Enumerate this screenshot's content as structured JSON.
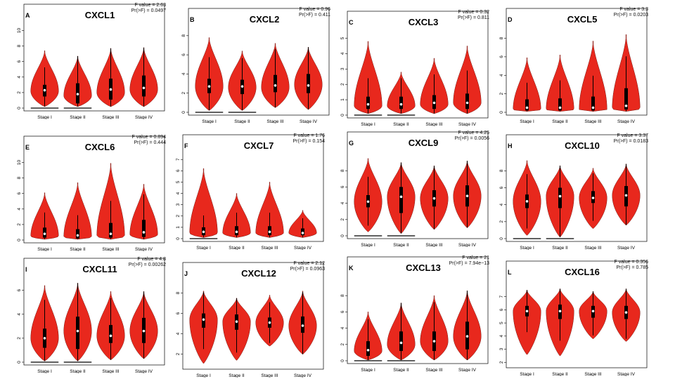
{
  "chart_data": [
    {
      "type": "violin",
      "panel": "A",
      "title": "CXCL1",
      "f_text": "F value = 2.63",
      "p_text": "Pr(>F) = 0.0497",
      "categories": [
        "Stage I",
        "Stage II",
        "Stage III",
        "Stage IV"
      ],
      "yticks": [
        0,
        2,
        4,
        6,
        8,
        10
      ],
      "ylim": [
        0,
        10.5
      ],
      "violins": [
        {
          "min": 0.2,
          "max": 7.4,
          "q1": 1.5,
          "median": 2.3,
          "q3": 3.0,
          "mode": 2.2,
          "zero_line": true
        },
        {
          "min": 0.2,
          "max": 6.7,
          "q1": 0.6,
          "median": 1.8,
          "q3": 3.2,
          "mode": 1.6,
          "zero_line": true
        },
        {
          "min": 0.2,
          "max": 7.7,
          "q1": 1.1,
          "median": 2.4,
          "q3": 3.8,
          "mode": 2.0,
          "zero_line": false
        },
        {
          "min": 0.2,
          "max": 7.8,
          "q1": 1.5,
          "median": 2.6,
          "q3": 4.2,
          "mode": 2.4,
          "zero_line": false
        }
      ]
    },
    {
      "type": "violin",
      "panel": "B",
      "title": "CXCL2",
      "f_text": "F value = 0.96",
      "p_text": "Pr(>F) = 0.411",
      "categories": [
        "Stage I",
        "Stage II",
        "Stage III",
        "Stage IV"
      ],
      "yticks": [
        0,
        2,
        4,
        6,
        8
      ],
      "ylim": [
        0,
        8.5
      ],
      "violins": [
        {
          "min": 0.2,
          "max": 7.8,
          "q1": 2.0,
          "median": 2.7,
          "q3": 3.5,
          "mode": 2.7,
          "zero_line": true
        },
        {
          "min": 0.2,
          "max": 6.4,
          "q1": 1.9,
          "median": 2.7,
          "q3": 3.4,
          "mode": 2.6,
          "zero_line": true
        },
        {
          "min": 0.5,
          "max": 7.2,
          "q1": 2.1,
          "median": 2.8,
          "q3": 3.9,
          "mode": 2.6,
          "zero_line": false
        },
        {
          "min": 0.3,
          "max": 6.8,
          "q1": 2.0,
          "median": 2.8,
          "q3": 4.0,
          "mode": 2.9,
          "zero_line": false
        }
      ]
    },
    {
      "type": "violin",
      "panel": "C",
      "title": "CXCL3",
      "f_text": "F value = 0.32",
      "p_text": "Pr(>F) = 0.811",
      "categories": [
        "Stage I",
        "Stage II",
        "Stage III",
        "Stage IV"
      ],
      "yticks": [
        0,
        1,
        2,
        3,
        4,
        5
      ],
      "ylim": [
        0,
        5.3
      ],
      "violins": [
        {
          "min": 0.1,
          "max": 4.8,
          "q1": 0.4,
          "median": 0.7,
          "q3": 1.2,
          "mode": 0.6,
          "zero_line": true
        },
        {
          "min": 0.1,
          "max": 2.8,
          "q1": 0.4,
          "median": 0.7,
          "q3": 1.2,
          "mode": 0.6,
          "zero_line": true
        },
        {
          "min": 0.1,
          "max": 3.7,
          "q1": 0.4,
          "median": 0.8,
          "q3": 1.3,
          "mode": 0.7,
          "zero_line": false
        },
        {
          "min": 0.1,
          "max": 4.5,
          "q1": 0.4,
          "median": 0.8,
          "q3": 1.4,
          "mode": 0.8,
          "zero_line": false
        }
      ]
    },
    {
      "type": "violin",
      "panel": "D",
      "title": "CXCL5",
      "f_text": "F value = 3.3",
      "p_text": "Pr(>F) = 0.0203",
      "categories": [
        "Stage I",
        "Stage II",
        "Stage III",
        "Stage IV"
      ],
      "yticks": [
        0,
        2,
        4,
        6,
        8
      ],
      "ylim": [
        0,
        8.8
      ],
      "violins": [
        {
          "min": 0.1,
          "max": 5.9,
          "q1": 0.2,
          "median": 0.5,
          "q3": 1.4,
          "mode": 0.3,
          "zero_line": false
        },
        {
          "min": 0.1,
          "max": 6.2,
          "q1": 0.2,
          "median": 0.5,
          "q3": 1.5,
          "mode": 0.3,
          "zero_line": false
        },
        {
          "min": 0.1,
          "max": 7.7,
          "q1": 0.2,
          "median": 0.5,
          "q3": 1.7,
          "mode": 0.3,
          "zero_line": false
        },
        {
          "min": 0.1,
          "max": 8.4,
          "q1": 0.3,
          "median": 0.7,
          "q3": 2.6,
          "mode": 0.4,
          "zero_line": false
        }
      ]
    },
    {
      "type": "violin",
      "panel": "E",
      "title": "CXCL6",
      "f_text": "F value = 0.894",
      "p_text": "Pr(>F) = 0.444",
      "categories": [
        "Stage I",
        "Stage II",
        "Stage III",
        "Stage IV"
      ],
      "yticks": [
        0,
        2,
        4,
        6,
        8,
        10
      ],
      "ylim": [
        0,
        10.5
      ],
      "violins": [
        {
          "min": 0.1,
          "max": 6.1,
          "q1": 0.3,
          "median": 0.8,
          "q3": 1.6,
          "mode": 0.5,
          "zero_line": false
        },
        {
          "min": 0.1,
          "max": 7.4,
          "q1": 0.2,
          "median": 0.6,
          "q3": 1.4,
          "mode": 0.4,
          "zero_line": false
        },
        {
          "min": 0.1,
          "max": 9.9,
          "q1": 0.3,
          "median": 0.8,
          "q3": 2.2,
          "mode": 0.5,
          "zero_line": false
        },
        {
          "min": 0.1,
          "max": 7.2,
          "q1": 0.4,
          "median": 1.0,
          "q3": 2.6,
          "mode": 0.7,
          "zero_line": false
        }
      ]
    },
    {
      "type": "violin",
      "panel": "F",
      "title": "CXCL7",
      "f_text": "F value = 1.76",
      "p_text": "Pr(>F) = 0.154",
      "categories": [
        "Stage I",
        "Stage II",
        "Stage III",
        "Stage IV"
      ],
      "yticks": [
        0,
        1,
        2,
        3,
        4,
        5,
        6,
        7
      ],
      "ylim": [
        0,
        7.2
      ],
      "violins": [
        {
          "min": 0.1,
          "max": 6.2,
          "q1": 0.3,
          "median": 0.6,
          "q3": 1.0,
          "mode": 0.5,
          "zero_line": true
        },
        {
          "min": 0.1,
          "max": 4.0,
          "q1": 0.3,
          "median": 0.6,
          "q3": 1.1,
          "mode": 0.5,
          "zero_line": false
        },
        {
          "min": 0.1,
          "max": 5.0,
          "q1": 0.3,
          "median": 0.6,
          "q3": 1.1,
          "mode": 0.5,
          "zero_line": false
        },
        {
          "min": 0.1,
          "max": 2.5,
          "q1": 0.3,
          "median": 0.5,
          "q3": 0.9,
          "mode": 0.5,
          "zero_line": false
        }
      ]
    },
    {
      "type": "violin",
      "panel": "G",
      "title": "CXCL9",
      "f_text": "F value = 4.25",
      "p_text": "Pr(>F) = 0.0056",
      "categories": [
        "Stage I",
        "Stage II",
        "Stage III",
        "Stage IV"
      ],
      "yticks": [
        0,
        2,
        4,
        6,
        8
      ],
      "ylim": [
        0,
        10
      ],
      "violins": [
        {
          "min": 0.5,
          "max": 9.5,
          "q1": 3.5,
          "median": 4.2,
          "q3": 5.0,
          "mode": 4.2,
          "zero_line": true
        },
        {
          "min": 0.3,
          "max": 9.0,
          "q1": 2.8,
          "median": 4.8,
          "q3": 6.0,
          "mode": 4.8,
          "zero_line": true
        },
        {
          "min": 0.8,
          "max": 8.6,
          "q1": 3.6,
          "median": 4.6,
          "q3": 5.6,
          "mode": 4.6,
          "zero_line": false
        },
        {
          "min": 1.0,
          "max": 9.2,
          "q1": 3.6,
          "median": 4.9,
          "q3": 6.2,
          "mode": 4.9,
          "zero_line": false
        }
      ]
    },
    {
      "type": "violin",
      "panel": "H",
      "title": "CXCL10",
      "f_text": "F value = 3.37",
      "p_text": "Pr(>F) = 0.0183",
      "categories": [
        "Stage I",
        "Stage II",
        "Stage III",
        "Stage IV"
      ],
      "yticks": [
        0,
        2,
        4,
        6,
        8
      ],
      "ylim": [
        0,
        9.6
      ],
      "violins": [
        {
          "min": 0.4,
          "max": 9.2,
          "q1": 3.6,
          "median": 4.4,
          "q3": 5.2,
          "mode": 4.4,
          "zero_line": true
        },
        {
          "min": 0.2,
          "max": 8.6,
          "q1": 3.6,
          "median": 5.0,
          "q3": 6.0,
          "mode": 5.0,
          "zero_line": true
        },
        {
          "min": 1.2,
          "max": 8.3,
          "q1": 4.2,
          "median": 4.8,
          "q3": 5.6,
          "mode": 4.8,
          "zero_line": false
        },
        {
          "min": 1.6,
          "max": 8.8,
          "q1": 3.8,
          "median": 5.1,
          "q3": 6.2,
          "mode": 5.1,
          "zero_line": false
        }
      ]
    },
    {
      "type": "violin",
      "panel": "I",
      "title": "CXCL11",
      "f_text": "F value = 4.8",
      "p_text": "Pr(>F) = 0.00262",
      "categories": [
        "Stage I",
        "Stage II",
        "Stage III",
        "Stage IV"
      ],
      "yticks": [
        0,
        2,
        4,
        6
      ],
      "ylim": [
        0,
        6.8
      ],
      "violins": [
        {
          "min": 0.1,
          "max": 6.4,
          "q1": 1.2,
          "median": 2.0,
          "q3": 2.8,
          "mode": 2.0,
          "zero_line": true
        },
        {
          "min": 0.1,
          "max": 6.6,
          "q1": 1.1,
          "median": 2.6,
          "q3": 3.8,
          "mode": 2.6,
          "zero_line": true
        },
        {
          "min": 0.2,
          "max": 5.9,
          "q1": 1.6,
          "median": 2.2,
          "q3": 3.1,
          "mode": 2.2,
          "zero_line": false
        },
        {
          "min": 0.3,
          "max": 5.9,
          "q1": 1.6,
          "median": 2.6,
          "q3": 3.7,
          "mode": 2.6,
          "zero_line": false
        }
      ]
    },
    {
      "type": "violin",
      "panel": "J",
      "title": "CXCL12",
      "f_text": "F value = 2.12",
      "p_text": "Pr(>F) = 0.0963",
      "categories": [
        "Stage I",
        "Stage II",
        "Stage III",
        "Stage IV"
      ],
      "yticks": [
        2,
        4,
        6,
        8
      ],
      "ylim": [
        0.8,
        8.8
      ],
      "violins": [
        {
          "min": 1.1,
          "max": 8.2,
          "q1": 4.6,
          "median": 5.4,
          "q3": 6.0,
          "mode": 5.4,
          "zero_line": false
        },
        {
          "min": 1.4,
          "max": 7.5,
          "q1": 4.4,
          "median": 5.2,
          "q3": 5.9,
          "mode": 5.2,
          "zero_line": false
        },
        {
          "min": 2.8,
          "max": 7.8,
          "q1": 4.6,
          "median": 5.1,
          "q3": 5.6,
          "mode": 5.1,
          "zero_line": false
        },
        {
          "min": 2.0,
          "max": 8.2,
          "q1": 4.1,
          "median": 4.8,
          "q3": 5.7,
          "mode": 4.8,
          "zero_line": false
        }
      ]
    },
    {
      "type": "violin",
      "panel": "K",
      "title": "CXCL13",
      "f_text": "F value = 21",
      "p_text": "Pr(>F) = 7.94e−13",
      "categories": [
        "Stage I",
        "Stage II",
        "Stage III",
        "Stage IV"
      ],
      "yticks": [
        0,
        2,
        4,
        6,
        8
      ],
      "ylim": [
        0,
        10
      ],
      "violins": [
        {
          "min": 0.1,
          "max": 6.0,
          "q1": 0.6,
          "median": 1.3,
          "q3": 2.4,
          "mode": 1.2,
          "zero_line": true
        },
        {
          "min": 0.1,
          "max": 7.1,
          "q1": 1.2,
          "median": 2.2,
          "q3": 3.6,
          "mode": 2.0,
          "zero_line": true
        },
        {
          "min": 0.1,
          "max": 8.0,
          "q1": 1.2,
          "median": 2.4,
          "q3": 3.6,
          "mode": 2.4,
          "zero_line": false
        },
        {
          "min": 0.1,
          "max": 8.6,
          "q1": 1.4,
          "median": 3.0,
          "q3": 4.8,
          "mode": 3.0,
          "zero_line": false
        }
      ]
    },
    {
      "type": "violin",
      "panel": "L",
      "title": "CXCL16",
      "f_text": "F value = 0.356",
      "p_text": "Pr(>F) = 0.785",
      "categories": [
        "Stage I",
        "Stage II",
        "Stage III",
        "Stage IV"
      ],
      "yticks": [
        2,
        3,
        4,
        5,
        6,
        7
      ],
      "ylim": [
        1.8,
        8.0
      ],
      "violins": [
        {
          "min": 2.6,
          "max": 7.5,
          "q1": 5.5,
          "median": 5.9,
          "q3": 6.3,
          "mode": 5.9,
          "zero_line": false
        },
        {
          "min": 2.5,
          "max": 7.6,
          "q1": 5.3,
          "median": 5.9,
          "q3": 6.4,
          "mode": 5.9,
          "zero_line": false
        },
        {
          "min": 3.8,
          "max": 7.4,
          "q1": 5.4,
          "median": 5.9,
          "q3": 6.3,
          "mode": 5.9,
          "zero_line": false
        },
        {
          "min": 3.6,
          "max": 7.6,
          "q1": 5.3,
          "median": 5.8,
          "q3": 6.3,
          "mode": 5.8,
          "zero_line": false
        }
      ]
    }
  ],
  "colors": {
    "violin_fill": "#e8281d",
    "violin_stroke": "#7a1a14",
    "box": "#000000",
    "median": "#ffffff"
  }
}
